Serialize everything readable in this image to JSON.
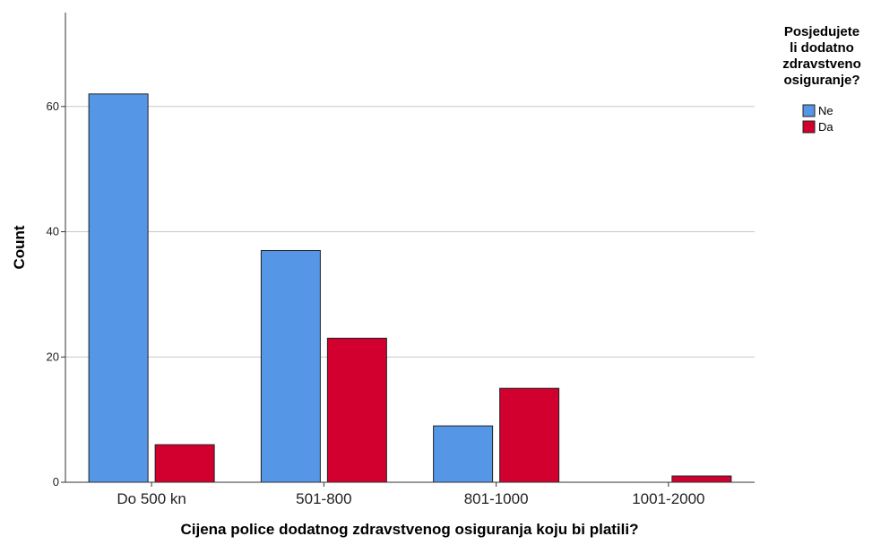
{
  "chart_data": {
    "type": "bar",
    "categories": [
      "Do 500 kn",
      "501-800",
      "801-1000",
      "1001-2000"
    ],
    "series": [
      {
        "name": "Ne",
        "values": [
          62,
          37,
          9,
          0
        ],
        "color": "#5596e6"
      },
      {
        "name": "Da",
        "values": [
          6,
          23,
          15,
          1
        ],
        "color": "#d1002f"
      }
    ],
    "xlabel": "Cijena police dodatnog zdravstvenog osiguranja koju bi platili?",
    "ylabel": "Count",
    "ylim": [
      0,
      75
    ],
    "yticks": [
      0,
      20,
      40,
      60
    ],
    "grid": true,
    "legend": {
      "title_lines": [
        "Posjedujete",
        "li dodatno",
        "zdravstveno",
        "osiguranje?"
      ],
      "position": "top-right"
    }
  }
}
